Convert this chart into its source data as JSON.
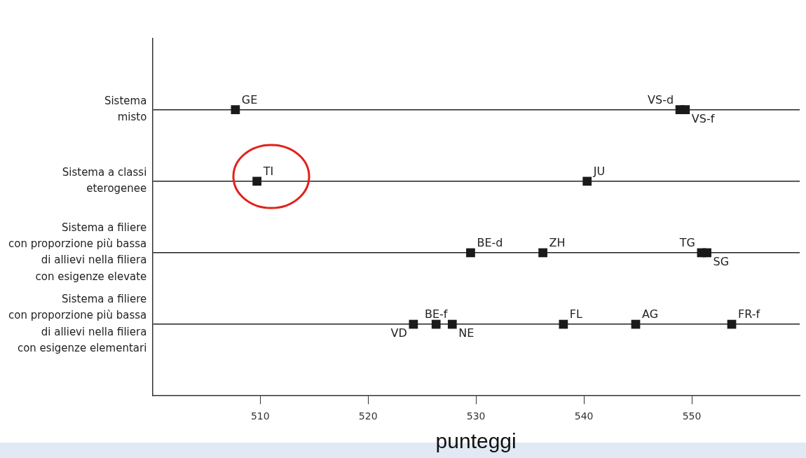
{
  "chart_data": {
    "type": "scatter",
    "orientation": "horizontal",
    "xlabel": "punteggi",
    "categories": [
      "Sistema\nmisto",
      "Sistema a classi\neterogenee",
      "Sistema a filiere\ncon proporzione più bassa\ndi allievi nella filiera\ncon esigenze elevate",
      "Sistema a filiere\ncon proporzione più bassa\ndi allievi nella filiera\ncon esigenze elementari"
    ],
    "series": [
      {
        "name": "GE",
        "color": "#1a1a1a",
        "values": [
          507.7,
          null,
          null,
          null
        ]
      },
      {
        "name": "VS-d",
        "color": "#1a1a1a",
        "values": [
          548.9,
          null,
          null,
          null
        ]
      },
      {
        "name": "VS-f",
        "color": "#1a1a1a",
        "values": [
          549.4,
          null,
          null,
          null
        ]
      },
      {
        "name": "TI",
        "color": "#1a1a1a",
        "values": [
          null,
          509.7,
          null,
          null
        ]
      },
      {
        "name": "JU",
        "color": "#1a1a1a",
        "values": [
          null,
          540.3,
          null,
          null
        ]
      },
      {
        "name": "BE-d",
        "color": "#1a1a1a",
        "values": [
          null,
          null,
          529.5,
          null
        ]
      },
      {
        "name": "ZH",
        "color": "#1a1a1a",
        "values": [
          null,
          null,
          536.2,
          null
        ]
      },
      {
        "name": "TG",
        "color": "#1a1a1a",
        "values": [
          null,
          null,
          550.9,
          null
        ]
      },
      {
        "name": "SG",
        "color": "#1a1a1a",
        "values": [
          null,
          null,
          551.4,
          null
        ]
      },
      {
        "name": "VD",
        "color": "#1a1a1a",
        "values": [
          null,
          null,
          null,
          524.2
        ]
      },
      {
        "name": "BE-f",
        "color": "#1a1a1a",
        "values": [
          null,
          null,
          null,
          526.3
        ]
      },
      {
        "name": "NE",
        "color": "#1a1a1a",
        "values": [
          null,
          null,
          null,
          527.8
        ]
      },
      {
        "name": "FL",
        "color": "#1a1a1a",
        "values": [
          null,
          null,
          null,
          538.1
        ]
      },
      {
        "name": "AG",
        "color": "#1a1a1a",
        "values": [
          null,
          null,
          null,
          544.8
        ]
      },
      {
        "name": "FR-f",
        "color": "#1a1a1a",
        "values": [
          null,
          null,
          null,
          553.7
        ]
      }
    ],
    "xlim": [
      500,
      560
    ],
    "xticks": [
      510,
      520,
      530,
      540,
      550
    ],
    "grid": "y",
    "legend": false,
    "marker": "square"
  }
}
